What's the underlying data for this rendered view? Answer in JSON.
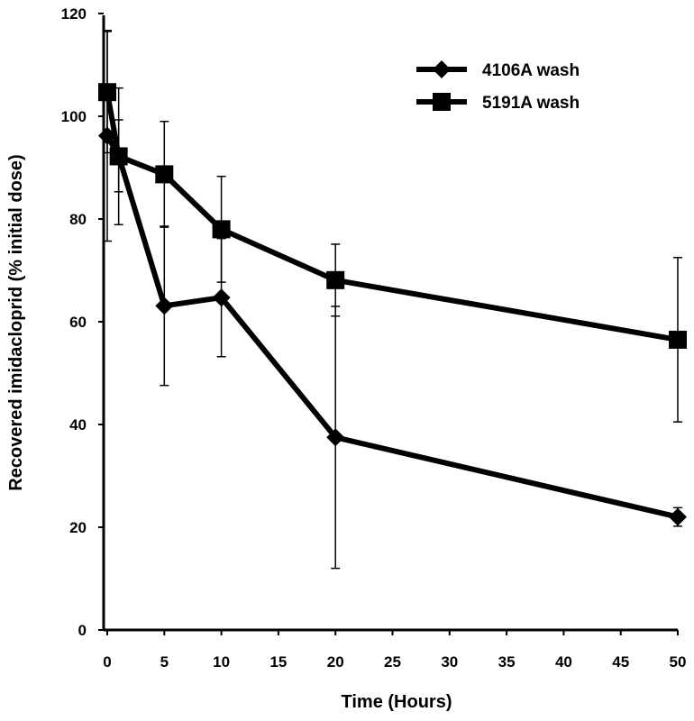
{
  "chart_data": {
    "type": "line",
    "title": "",
    "xlabel": "Time (Hours)",
    "ylabel": "Recovered imidacloprid (% initial dose)",
    "xlim": [
      0,
      50
    ],
    "ylim": [
      0,
      120
    ],
    "xticks": [
      0,
      5,
      10,
      15,
      20,
      25,
      30,
      35,
      40,
      45,
      50
    ],
    "yticks": [
      0,
      20,
      40,
      60,
      80,
      100,
      120
    ],
    "grid": false,
    "legend_position": "top-right",
    "series": [
      {
        "name": "4106A wash",
        "marker": "diamond",
        "color": "#000000",
        "x": [
          0,
          1,
          5,
          10,
          20,
          50
        ],
        "y": [
          96.2,
          92.3,
          63.1,
          64.7,
          37.5,
          22.0
        ],
        "error": [
          20.5,
          7.0,
          15.5,
          11.5,
          25.5,
          1.8
        ]
      },
      {
        "name": "5191A wash",
        "marker": "square",
        "color": "#000000",
        "x": [
          0,
          1,
          5,
          10,
          20,
          50
        ],
        "y": [
          104.7,
          92.2,
          88.7,
          78.0,
          68.1,
          56.5
        ],
        "error": [
          11.8,
          13.3,
          10.3,
          10.3,
          7.0,
          16.0
        ]
      }
    ]
  }
}
